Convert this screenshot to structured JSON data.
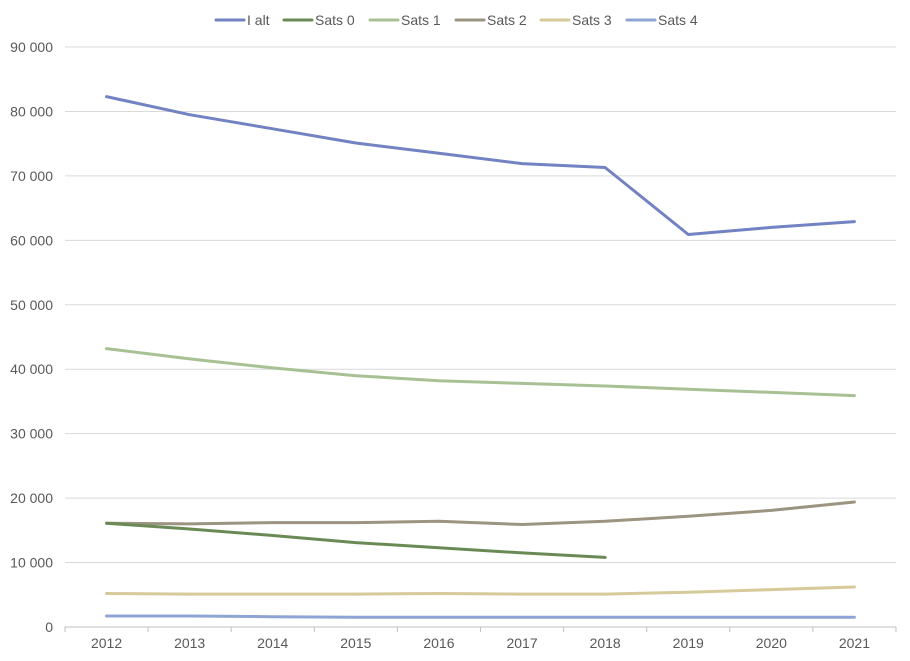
{
  "chart_data": {
    "type": "line",
    "title": "",
    "xlabel": "",
    "ylabel": "",
    "x": [
      "2012",
      "2013",
      "2014",
      "2015",
      "2016",
      "2017",
      "2018",
      "2019",
      "2020",
      "2021"
    ],
    "ylim": [
      0,
      90000
    ],
    "yticks": [
      0,
      10000,
      20000,
      30000,
      40000,
      50000,
      60000,
      70000,
      80000,
      90000
    ],
    "ytick_labels": [
      "0",
      "10 000",
      "20 000",
      "30 000",
      "40 000",
      "50 000",
      "60 000",
      "70 000",
      "80 000",
      "90 000"
    ],
    "grid": true,
    "legend_position": "top",
    "series": [
      {
        "name": "I alt",
        "color": "#7282c2",
        "values": [
          82300,
          79500,
          77300,
          75100,
          73500,
          71900,
          71300,
          60900,
          62000,
          62900
        ]
      },
      {
        "name": "Sats 0",
        "color": "#6a8a55",
        "values": [
          16100,
          15200,
          14200,
          13100,
          12300,
          11500,
          10800,
          null,
          null,
          null
        ]
      },
      {
        "name": "Sats 1",
        "color": "#a7c194",
        "values": [
          43200,
          41600,
          40200,
          39000,
          38200,
          37800,
          37400,
          36900,
          36400,
          35900
        ]
      },
      {
        "name": "Sats 2",
        "color": "#9a9480",
        "values": [
          16100,
          16000,
          16200,
          16200,
          16400,
          15900,
          16400,
          17200,
          18100,
          19400
        ]
      },
      {
        "name": "Sats 3",
        "color": "#d6c99a",
        "values": [
          5200,
          5100,
          5100,
          5100,
          5200,
          5100,
          5100,
          5400,
          5800,
          6200
        ]
      },
      {
        "name": "Sats 4",
        "color": "#8ea4d4",
        "values": [
          1700,
          1700,
          1600,
          1500,
          1500,
          1500,
          1500,
          1500,
          1500,
          1500
        ]
      }
    ]
  }
}
